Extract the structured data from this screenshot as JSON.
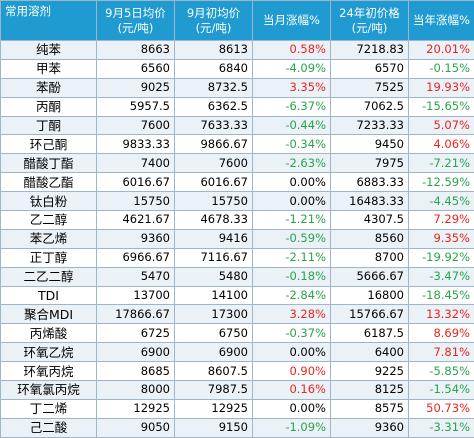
{
  "header": {
    "name": "常用溶剂",
    "spot_price": [
      "9月5日均价",
      "(元/吨)"
    ],
    "start_month_price": [
      "9月初均价",
      "(元/吨)"
    ],
    "month_change": "当月涨幅%",
    "start_year_price": [
      "24年初价格",
      "(元/吨)"
    ],
    "year_change": "当年涨幅%"
  },
  "colors": {
    "header_bg": "#1f9bd1",
    "row_alt_bg": "#eaf2f8",
    "up": "#e8251d",
    "down": "#2aa34a"
  },
  "rows": [
    {
      "name": "纯苯",
      "spot": "8663",
      "month_start": "8613",
      "month_chg": "0.58%",
      "month_dir": "up",
      "year_start": "7218.83",
      "year_chg": "20.01%",
      "year_dir": "up"
    },
    {
      "name": "甲苯",
      "spot": "6560",
      "month_start": "6840",
      "month_chg": "-4.09%",
      "month_dir": "down",
      "year_start": "6570",
      "year_chg": "-0.15%",
      "year_dir": "down"
    },
    {
      "name": "苯酚",
      "spot": "9025",
      "month_start": "8732.5",
      "month_chg": "3.35%",
      "month_dir": "up",
      "year_start": "7525",
      "year_chg": "19.93%",
      "year_dir": "up"
    },
    {
      "name": "丙酮",
      "spot": "5957.5",
      "month_start": "6362.5",
      "month_chg": "-6.37%",
      "month_dir": "down",
      "year_start": "7062.5",
      "year_chg": "-15.65%",
      "year_dir": "down"
    },
    {
      "name": "丁酮",
      "spot": "7600",
      "month_start": "7633.33",
      "month_chg": "-0.44%",
      "month_dir": "down",
      "year_start": "7233.33",
      "year_chg": "5.07%",
      "year_dir": "up"
    },
    {
      "name": "环己酮",
      "spot": "9833.33",
      "month_start": "9866.67",
      "month_chg": "-0.34%",
      "month_dir": "down",
      "year_start": "9450",
      "year_chg": "4.06%",
      "year_dir": "up"
    },
    {
      "name": "醋酸丁酯",
      "spot": "7400",
      "month_start": "7600",
      "month_chg": "-2.63%",
      "month_dir": "down",
      "year_start": "7975",
      "year_chg": "-7.21%",
      "year_dir": "down"
    },
    {
      "name": "醋酸乙酯",
      "spot": "6016.67",
      "month_start": "6016.67",
      "month_chg": "0.00%",
      "month_dir": "flat",
      "year_start": "6883.33",
      "year_chg": "-12.59%",
      "year_dir": "down"
    },
    {
      "name": "钛白粉",
      "spot": "15750",
      "month_start": "15750",
      "month_chg": "0.00%",
      "month_dir": "flat",
      "year_start": "16483.33",
      "year_chg": "-4.45%",
      "year_dir": "down"
    },
    {
      "name": "乙二醇",
      "spot": "4621.67",
      "month_start": "4678.33",
      "month_chg": "-1.21%",
      "month_dir": "down",
      "year_start": "4307.5",
      "year_chg": "7.29%",
      "year_dir": "up"
    },
    {
      "name": "苯乙烯",
      "spot": "9360",
      "month_start": "9416",
      "month_chg": "-0.59%",
      "month_dir": "down",
      "year_start": "8560",
      "year_chg": "9.35%",
      "year_dir": "up"
    },
    {
      "name": "正丁醇",
      "spot": "6966.67",
      "month_start": "7116.67",
      "month_chg": "-2.11%",
      "month_dir": "down",
      "year_start": "8700",
      "year_chg": "-19.92%",
      "year_dir": "down"
    },
    {
      "name": "二乙二醇",
      "spot": "5470",
      "month_start": "5480",
      "month_chg": "-0.18%",
      "month_dir": "down",
      "year_start": "5666.67",
      "year_chg": "-3.47%",
      "year_dir": "down"
    },
    {
      "name": "TDI",
      "spot": "13700",
      "month_start": "14100",
      "month_chg": "-2.84%",
      "month_dir": "down",
      "year_start": "16800",
      "year_chg": "-18.45%",
      "year_dir": "down"
    },
    {
      "name": "聚合MDI",
      "spot": "17866.67",
      "month_start": "17300",
      "month_chg": "3.28%",
      "month_dir": "up",
      "year_start": "15766.67",
      "year_chg": "13.32%",
      "year_dir": "up"
    },
    {
      "name": "丙烯酸",
      "spot": "6725",
      "month_start": "6750",
      "month_chg": "-0.37%",
      "month_dir": "down",
      "year_start": "6187.5",
      "year_chg": "8.69%",
      "year_dir": "up"
    },
    {
      "name": "环氧乙烷",
      "spot": "6900",
      "month_start": "6900",
      "month_chg": "0.00%",
      "month_dir": "flat",
      "year_start": "6400",
      "year_chg": "7.81%",
      "year_dir": "up"
    },
    {
      "name": "环氧丙烷",
      "spot": "8685",
      "month_start": "8607.5",
      "month_chg": "0.90%",
      "month_dir": "up",
      "year_start": "9225",
      "year_chg": "-5.85%",
      "year_dir": "down"
    },
    {
      "name": "环氧氯丙烷",
      "spot": "8000",
      "month_start": "7987.5",
      "month_chg": "0.16%",
      "month_dir": "up",
      "year_start": "8125",
      "year_chg": "-1.54%",
      "year_dir": "down"
    },
    {
      "name": "丁二烯",
      "spot": "12925",
      "month_start": "12925",
      "month_chg": "0.00%",
      "month_dir": "flat",
      "year_start": "8575",
      "year_chg": "50.73%",
      "year_dir": "up"
    },
    {
      "name": "己二酸",
      "spot": "9050",
      "month_start": "9150",
      "month_chg": "-1.09%",
      "month_dir": "down",
      "year_start": "9360",
      "year_chg": "-3.31%",
      "year_dir": "down"
    }
  ]
}
